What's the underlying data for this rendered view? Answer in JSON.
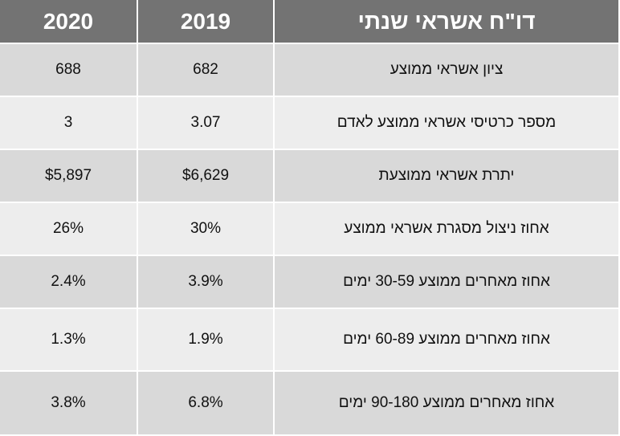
{
  "header": {
    "title": "דו\"ח אשראי שנתי",
    "col_2019": "2019",
    "col_2020": "2020"
  },
  "table": {
    "rows": [
      [
        "ציון אשראי ממוצע",
        "682",
        "688"
      ],
      [
        "מספר כרטיסי אשראי ממוצע לאדם",
        "3.07",
        "3"
      ],
      [
        "יתרת אשראי ממוצעת",
        "$6,629",
        "$5,897"
      ],
      [
        "אחוז ניצול מסגרת אשראי ממוצע",
        "30%",
        "26%"
      ],
      [
        "אחוז מאחרים ממוצע 30-59 ימים",
        "3.9%",
        "2.4%"
      ],
      [
        "אחוז מאחרים ממוצע 60-89 ימים",
        "1.9%",
        "1.3%"
      ],
      [
        "אחוז מאחרים ממוצע 90-180 ימים",
        "6.8%",
        "3.8%"
      ]
    ]
  }
}
